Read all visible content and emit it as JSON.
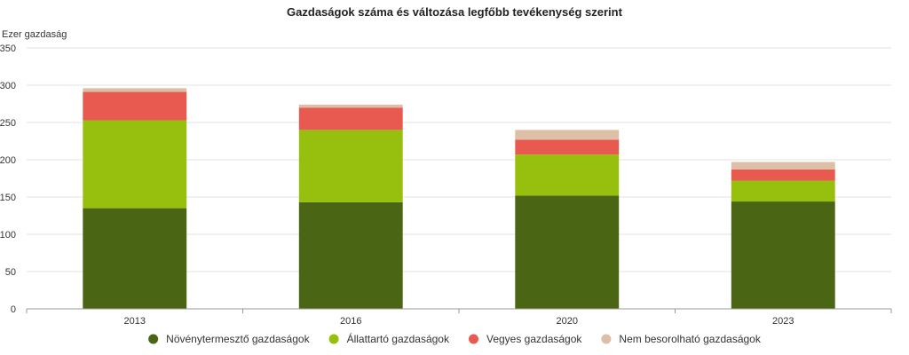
{
  "chart_data": {
    "type": "bar",
    "stacked": true,
    "title": "Gazdaságok száma és változása legfőbb tevékenység szerint",
    "ylabel": "Ezer gazdaság",
    "xlabel": "",
    "ylim": [
      0,
      350
    ],
    "yticks": [
      0,
      50,
      100,
      150,
      200,
      250,
      300,
      350
    ],
    "grid": true,
    "legend_position": "bottom",
    "categories": [
      "2013",
      "2016",
      "2020",
      "2023"
    ],
    "series": [
      {
        "name": "Növénytermesztő gazdaságok",
        "color": "#4a6614",
        "values": [
          135,
          143,
          152,
          144
        ]
      },
      {
        "name": "Állattartó gazdaságok",
        "color": "#97bf0d",
        "values": [
          118,
          97,
          55,
          28
        ]
      },
      {
        "name": "Vegyes gazdaságok",
        "color": "#e85a50",
        "values": [
          38,
          30,
          20,
          15
        ]
      },
      {
        "name": "Nem besorolható gazdaságok",
        "color": "#dcbfa6",
        "values": [
          5,
          4,
          13,
          10
        ]
      }
    ]
  }
}
